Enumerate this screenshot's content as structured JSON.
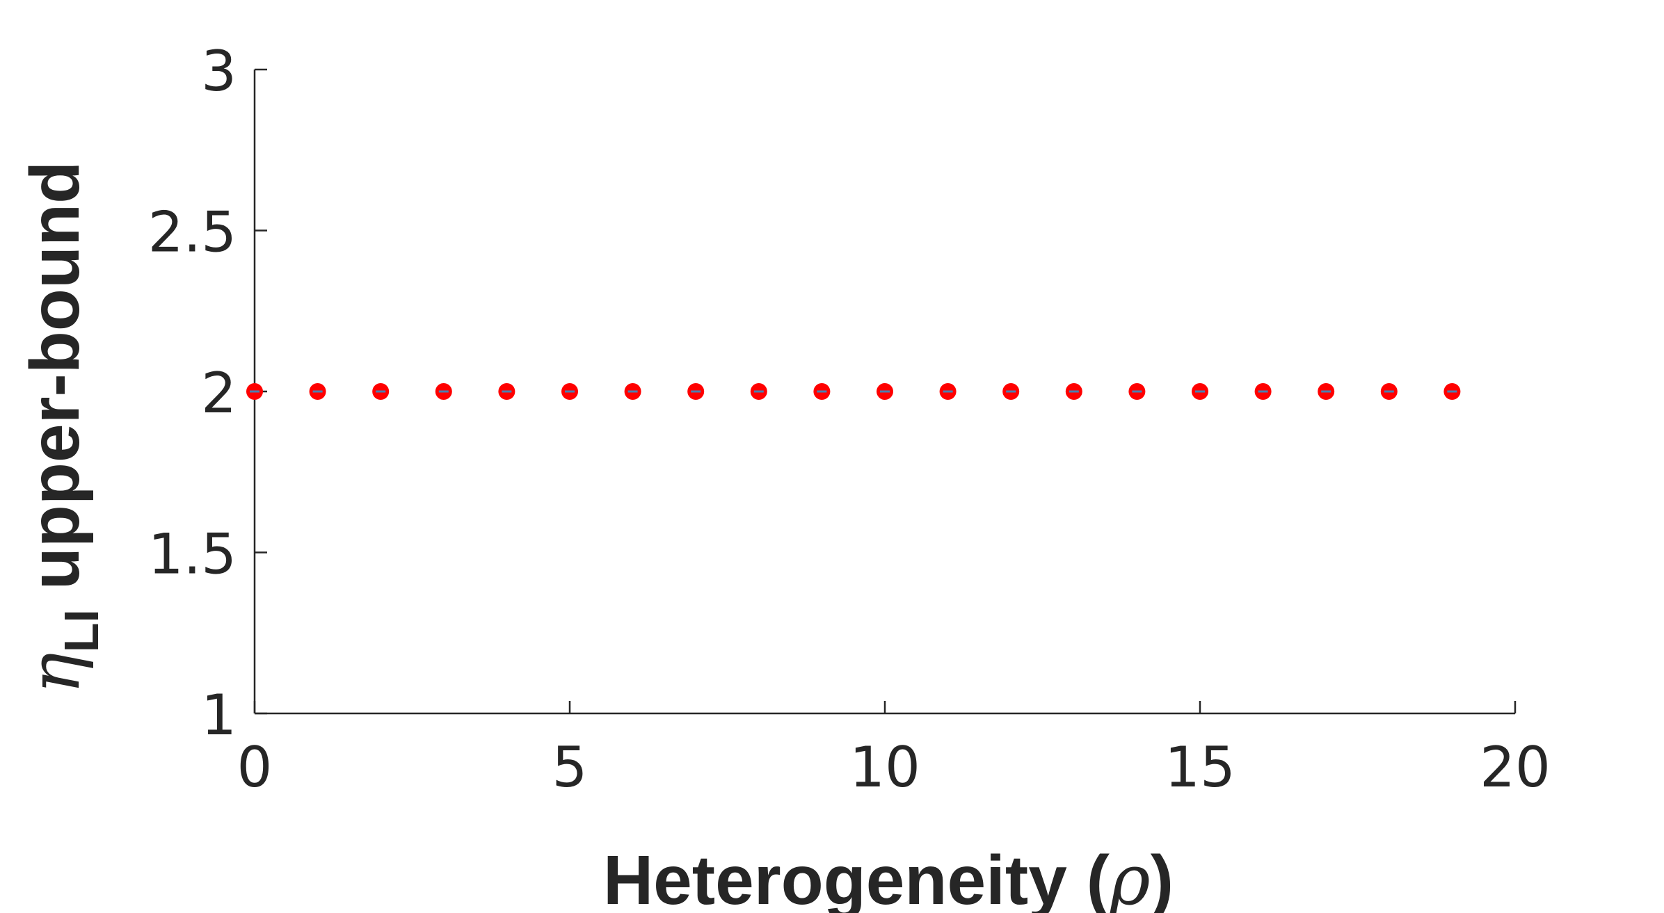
{
  "chart_data": {
    "type": "scatter",
    "title": "",
    "xlabel": {
      "text": "Heterogeneity (",
      "symbol": "ρ",
      "close": ")"
    },
    "ylabel": {
      "symbol": "η",
      "subscript": "LI",
      "text": " upper-bound"
    },
    "xlim": [
      0,
      20
    ],
    "ylim": [
      1,
      3
    ],
    "xticks": [
      0,
      5,
      10,
      15,
      20
    ],
    "yticks": [
      1,
      1.5,
      2,
      2.5,
      3
    ],
    "xtick_labels": [
      "0",
      "5",
      "10",
      "15",
      "20"
    ],
    "ytick_labels": [
      "1",
      "1.5",
      "2",
      "2.5",
      "3"
    ],
    "grid": false,
    "marker_color": "#ff0000",
    "marker_center_color": "#4a7fb0",
    "axis_color": "#262626",
    "series": [
      {
        "x": [
          0,
          1,
          2,
          3,
          4,
          5,
          6,
          7,
          8,
          9,
          10,
          11,
          12,
          13,
          14,
          15,
          16,
          17,
          18,
          19
        ],
        "y": [
          2,
          2,
          2,
          2,
          2,
          2,
          2,
          2,
          2,
          2,
          2,
          2,
          2,
          2,
          2,
          2,
          2,
          2,
          2,
          2
        ]
      }
    ]
  }
}
